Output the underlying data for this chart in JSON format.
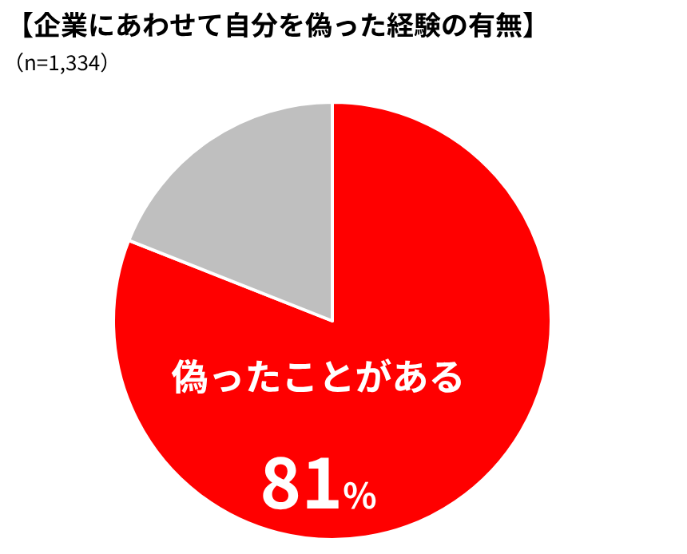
{
  "chart_data": {
    "type": "pie",
    "title": "【企業にあわせて自分を偽った経験の有無】",
    "subtitle": "（n=1,334）",
    "categories": [
      "偽ったことがある",
      null
    ],
    "values": [
      81,
      19
    ],
    "colors": [
      "#ff0000",
      "#bfbfbf"
    ],
    "value_labels": [
      "81%",
      null
    ]
  }
}
